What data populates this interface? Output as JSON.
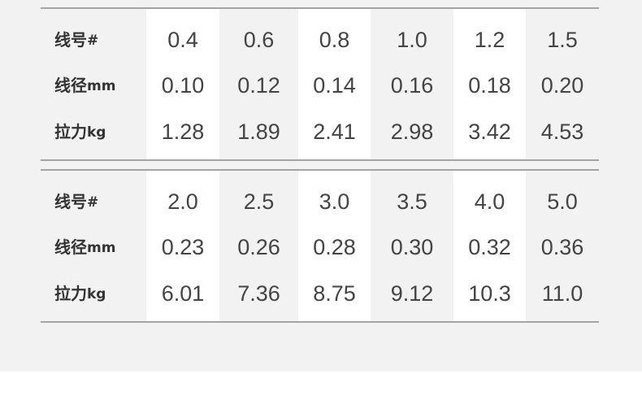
{
  "tables": [
    {
      "rows": [
        {
          "label": "线号",
          "unit": "#",
          "values": [
            "0.4",
            "0.6",
            "0.8",
            "1.0",
            "1.2",
            "1.5"
          ]
        },
        {
          "label": "线径",
          "unit": "mm",
          "values": [
            "0.10",
            "0.12",
            "0.14",
            "0.16",
            "0.18",
            "0.20"
          ]
        },
        {
          "label": "拉力",
          "unit": "kg",
          "values": [
            "1.28",
            "1.89",
            "2.41",
            "2.98",
            "3.42",
            "4.53"
          ]
        }
      ]
    },
    {
      "rows": [
        {
          "label": "线号",
          "unit": "#",
          "values": [
            "2.0",
            "2.5",
            "3.0",
            "3.5",
            "4.0",
            "5.0"
          ]
        },
        {
          "label": "线径",
          "unit": "mm",
          "values": [
            "0.23",
            "0.26",
            "0.28",
            "0.30",
            "0.32",
            "0.36"
          ]
        },
        {
          "label": "拉力",
          "unit": "kg",
          "values": [
            "6.01",
            "7.36",
            "8.75",
            "9.12",
            "10.3",
            "11.0"
          ]
        }
      ]
    }
  ]
}
